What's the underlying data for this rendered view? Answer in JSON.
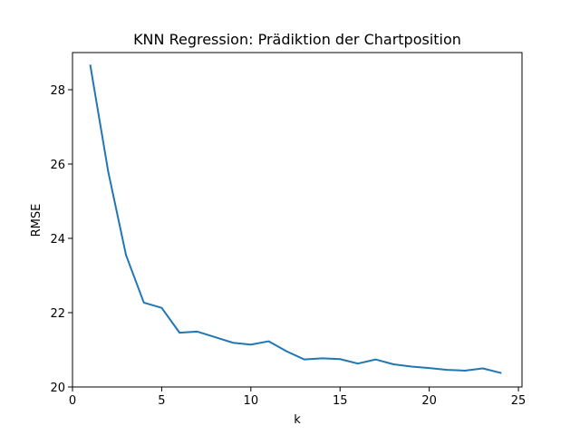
{
  "chart_data": {
    "type": "line",
    "title": "KNN Regression: Prädiktion der Chartposition",
    "xlabel": "k",
    "ylabel": "RMSE",
    "xlim": [
      0,
      25.2
    ],
    "ylim": [
      20.0,
      29.0
    ],
    "xticks": [
      0,
      5,
      10,
      15,
      20,
      25
    ],
    "yticks": [
      20,
      22,
      24,
      26,
      28
    ],
    "grid": false,
    "series": [
      {
        "color": "#1f77b4",
        "x": [
          1,
          2,
          3,
          4,
          5,
          6,
          7,
          8,
          9,
          10,
          11,
          12,
          13,
          14,
          15,
          16,
          17,
          18,
          19,
          20,
          21,
          22,
          23,
          24
        ],
        "y": [
          28.65,
          25.8,
          23.55,
          22.27,
          22.13,
          21.46,
          21.49,
          21.34,
          21.19,
          21.14,
          21.23,
          20.96,
          20.74,
          20.77,
          20.75,
          20.63,
          20.74,
          20.61,
          20.55,
          20.51,
          20.46,
          20.44,
          20.5,
          20.38
        ]
      }
    ]
  }
}
